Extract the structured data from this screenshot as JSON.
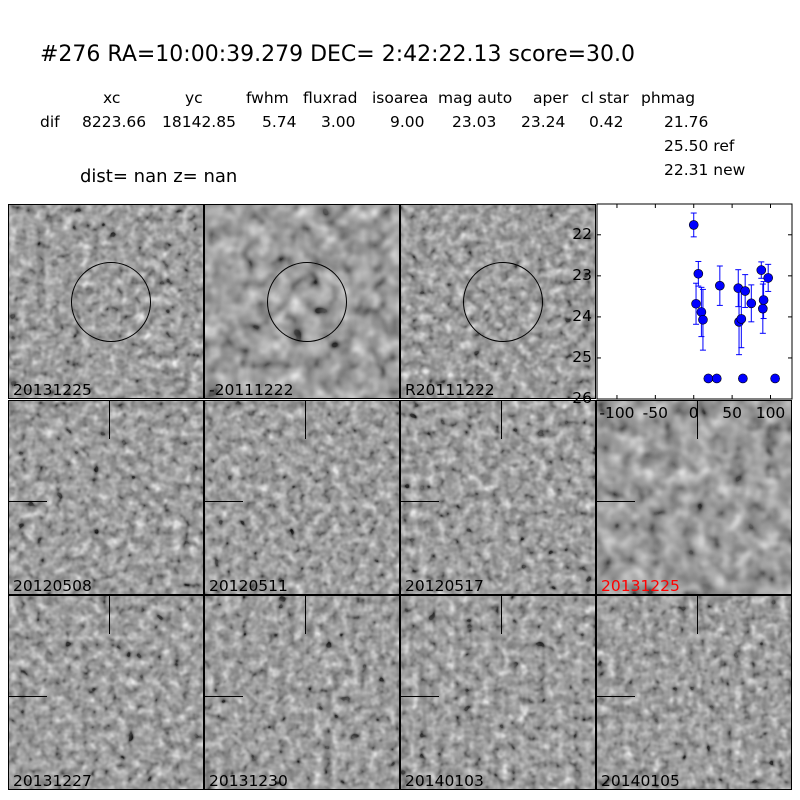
{
  "header": {
    "title": "#276   RA=10:00:39.279 DEC= 2:42:22.13      score=30.0",
    "columns": [
      "xc",
      "yc",
      "fwhm",
      "fluxrad",
      "isoarea",
      "mag auto",
      "aper",
      "cl star",
      "phmag"
    ],
    "row_label": "dif",
    "values": [
      "8223.66",
      "18142.85",
      "5.74",
      "3.00",
      "9.00",
      "23.03",
      "23.24",
      "0.42",
      "21.76"
    ],
    "ref_line": "25.50 ref",
    "new_line": "22.31 new",
    "dist_line": "dist=   nan      z=   nan"
  },
  "panels": [
    {
      "label": "20131225",
      "circle": true,
      "crosshair": false,
      "highlight": false
    },
    {
      "label": "-20111222",
      "circle": true,
      "crosshair": false,
      "highlight": false
    },
    {
      "label": "R20111222",
      "circle": true,
      "crosshair": false,
      "highlight": false
    },
    {
      "label": "20120508",
      "circle": false,
      "crosshair": true,
      "highlight": false
    },
    {
      "label": "20120511",
      "circle": false,
      "crosshair": true,
      "highlight": false
    },
    {
      "label": "20120517",
      "circle": false,
      "crosshair": true,
      "highlight": false
    },
    {
      "label": "20131225",
      "circle": false,
      "crosshair": true,
      "highlight": true
    },
    {
      "label": "20131227",
      "circle": false,
      "crosshair": true,
      "highlight": false
    },
    {
      "label": "20131230",
      "circle": false,
      "crosshair": true,
      "highlight": false
    },
    {
      "label": "20140103",
      "circle": false,
      "crosshair": true,
      "highlight": false
    },
    {
      "label": "20140105",
      "circle": false,
      "crosshair": true,
      "highlight": false
    }
  ],
  "colors": {
    "highlight_label": "#ff0000",
    "points": "#0000ff"
  },
  "chart_data": {
    "type": "scatter",
    "error_bars": true,
    "xlim": [
      -126,
      128
    ],
    "ylim": [
      26,
      21.25
    ],
    "y_inverted": true,
    "xticks": [
      "-100",
      "-50",
      "0",
      "50",
      "100"
    ],
    "yticks": [
      "22",
      "23",
      "24",
      "25",
      "26"
    ],
    "grid": false,
    "points": [
      {
        "x": 0,
        "y": 21.76,
        "err": 0.29
      },
      {
        "x": 6,
        "y": 22.95,
        "err": 0.3
      },
      {
        "x": 3,
        "y": 23.68,
        "err": 0.5
      },
      {
        "x": 10,
        "y": 23.88,
        "err": 0.6
      },
      {
        "x": 12,
        "y": 24.07,
        "err": 0.74
      },
      {
        "x": 34,
        "y": 23.24,
        "err": 0.48
      },
      {
        "x": 58,
        "y": 23.3,
        "err": 0.45
      },
      {
        "x": 59,
        "y": 24.12,
        "err": 0.8
      },
      {
        "x": 62,
        "y": 24.05,
        "err": 0.7
      },
      {
        "x": 67,
        "y": 23.37,
        "err": 0.4
      },
      {
        "x": 75,
        "y": 23.67,
        "err": 0.45
      },
      {
        "x": 88,
        "y": 22.86,
        "err": 0.2
      },
      {
        "x": 97,
        "y": 23.05,
        "err": 0.33
      },
      {
        "x": 91,
        "y": 23.59,
        "err": 0.45
      },
      {
        "x": 90,
        "y": 23.8,
        "err": 0.6
      },
      {
        "x": 19,
        "y": 25.5,
        "err": 0.05
      },
      {
        "x": 30,
        "y": 25.5,
        "err": 0.05
      },
      {
        "x": 64,
        "y": 25.5,
        "err": 0.05
      },
      {
        "x": 106,
        "y": 25.5,
        "err": 0.05
      }
    ]
  }
}
